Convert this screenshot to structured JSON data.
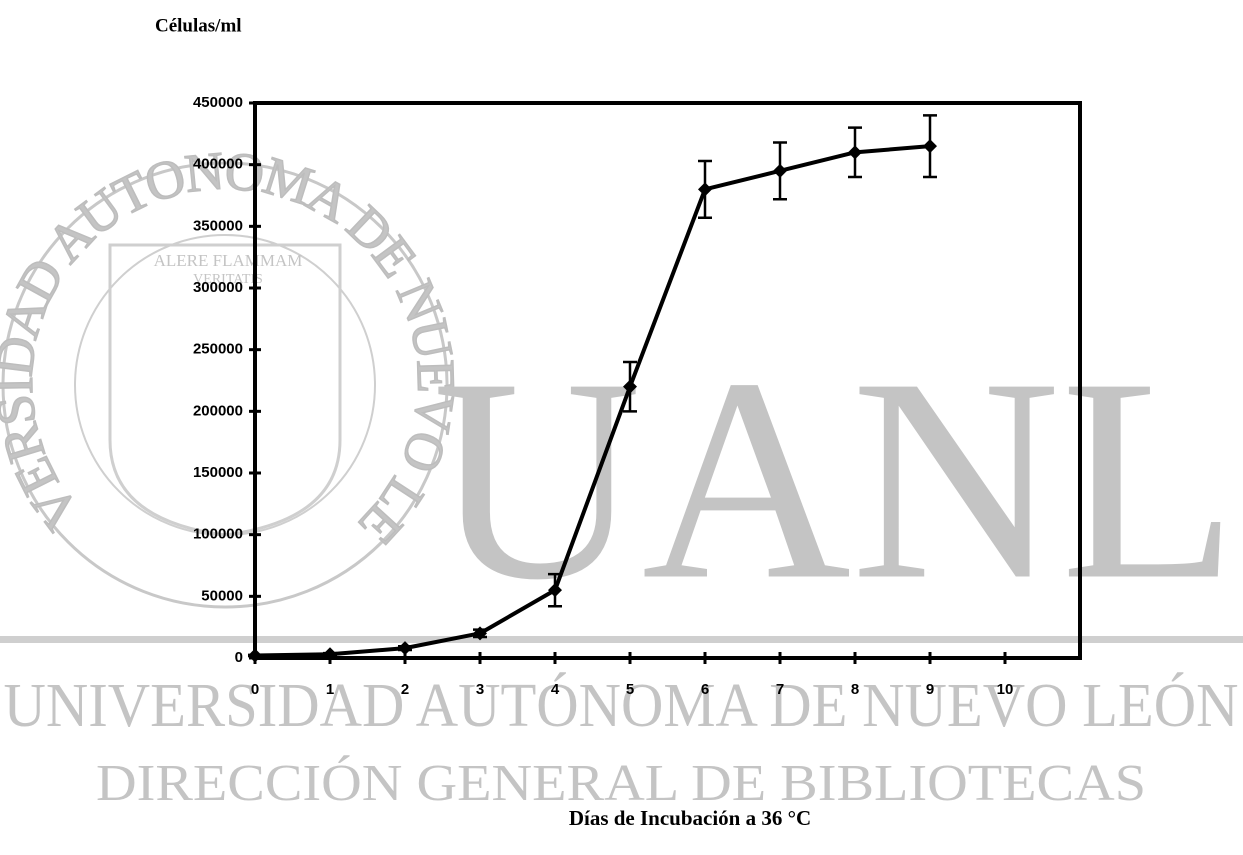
{
  "chart_data": {
    "type": "line",
    "y_label": "Células/ml",
    "x_label": "Días de Incubación a  36 °C",
    "x": [
      0,
      1,
      2,
      3,
      4,
      5,
      6,
      7,
      8,
      9
    ],
    "values": [
      2000,
      3000,
      8000,
      20000,
      55000,
      220000,
      380000,
      395000,
      410000,
      415000
    ],
    "errors": [
      500,
      1000,
      1500,
      3000,
      13000,
      20000,
      23000,
      23000,
      20000,
      25000
    ],
    "color": "#000000",
    "xlim": [
      0,
      11
    ],
    "xticks": [
      0,
      1,
      2,
      3,
      4,
      5,
      6,
      7,
      8,
      9,
      10
    ],
    "ylim": [
      0,
      450000
    ],
    "yticks": [
      0,
      50000,
      100000,
      150000,
      200000,
      250000,
      300000,
      350000,
      400000,
      450000
    ],
    "watermark": {
      "logo": "UANL",
      "university": "UNIVERSIDAD AUTÓNOMA DE NUEVO LEÓN",
      "department": "DIRECCIÓN GENERAL DE BIBLIOTECAS",
      "seal_ring": "UNIVERSIDAD AUTONOMA DE NUEVO LEON",
      "seal_motto_1": "ALERE FLAMMAM",
      "seal_motto_2": "VERITATIS"
    }
  }
}
